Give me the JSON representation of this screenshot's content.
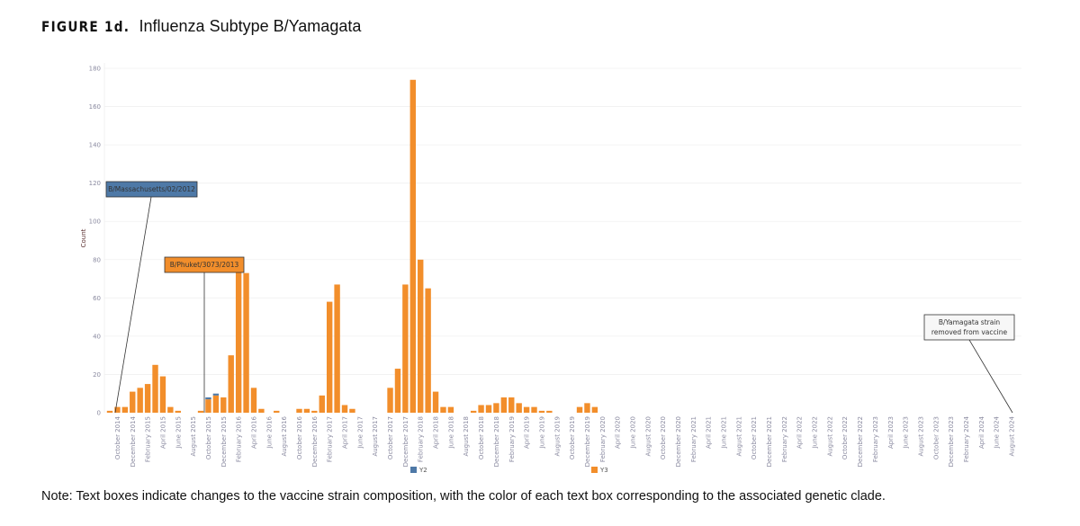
{
  "figure_label": "FIGURE 1d.",
  "figure_title": "Influenza Subtype B/Yamagata",
  "note": "Note: Text boxes indicate changes to the vaccine strain composition, with the color of each text box corresponding to the associated genetic clade.",
  "chart_data": {
    "type": "bar",
    "stacked": true,
    "title": "Influenza Subtype B/Yamagata",
    "xlabel": "",
    "ylabel": "Count",
    "ylim": [
      0,
      180
    ],
    "y_ticks": [
      0,
      20,
      40,
      60,
      80,
      100,
      120,
      140,
      160,
      180
    ],
    "grid": true,
    "legend_position": "bottom",
    "x_tick_labels": [
      "October 2014",
      "December 2014",
      "February 2015",
      "April 2015",
      "June 2015",
      "August 2015",
      "October 2015",
      "December 2015",
      "February 2016",
      "April 2016",
      "June 2016",
      "August 2016",
      "October 2016",
      "December 2016",
      "February 2017",
      "April 2017",
      "June 2017",
      "August 2017",
      "October 2017",
      "December 2017",
      "February 2018",
      "April 2018",
      "June 2018",
      "August 2018",
      "October 2018",
      "December 2018",
      "February 2019",
      "April 2019",
      "June 2019",
      "August 2019",
      "October 2019",
      "December 2019",
      "February 2020",
      "April 2020",
      "June 2020",
      "August 2020",
      "October 2020",
      "December 2020",
      "February 2021",
      "April 2021",
      "June 2021",
      "August 2021",
      "October 2021",
      "December 2021",
      "February 2022",
      "April 2022",
      "June 2022",
      "August 2022",
      "October 2022",
      "December 2022",
      "February 2023",
      "April 2023",
      "June 2023",
      "August 2023",
      "October 2023",
      "December 2023",
      "February 2024",
      "April 2024",
      "June 2024",
      "August 2024"
    ],
    "series": [
      {
        "name": "Y2",
        "color": "#4e79a7",
        "values": [
          0,
          0,
          0,
          0,
          0,
          0,
          0,
          0,
          0,
          0,
          0,
          0,
          0,
          1,
          1,
          0,
          0,
          0,
          0,
          0,
          0,
          0,
          0,
          0,
          0,
          0,
          0,
          0,
          0,
          0,
          0,
          0,
          0,
          0,
          0,
          0,
          0,
          0,
          0,
          0,
          0,
          0,
          0,
          0,
          0,
          0,
          0,
          0,
          0,
          0,
          0,
          0,
          0,
          0,
          0,
          0,
          0,
          0,
          0,
          0,
          0,
          0,
          0,
          0,
          0,
          0,
          0,
          0,
          0,
          0,
          0,
          0,
          0,
          0,
          0,
          0,
          0,
          0,
          0,
          0,
          0,
          0,
          0,
          0,
          0,
          0,
          0,
          0,
          0,
          0,
          0,
          0,
          0,
          0,
          0,
          0,
          0,
          0,
          0,
          0,
          0,
          0,
          0,
          0,
          0,
          0,
          0,
          0,
          0,
          0,
          0,
          0,
          0,
          0,
          0,
          0,
          0,
          0,
          0,
          0
        ]
      },
      {
        "name": "Y3",
        "color": "#f28e2b",
        "values": [
          1,
          3,
          3,
          11,
          13,
          15,
          25,
          19,
          3,
          1,
          0,
          0,
          1,
          7,
          9,
          8,
          30,
          78,
          73,
          13,
          2,
          0,
          1,
          0,
          0,
          2,
          2,
          1,
          9,
          58,
          67,
          4,
          2,
          0,
          0,
          0,
          0,
          13,
          23,
          67,
          174,
          80,
          65,
          11,
          3,
          3,
          0,
          0,
          1,
          4,
          4,
          5,
          8,
          8,
          5,
          3,
          3,
          1,
          1,
          0,
          0,
          0,
          3,
          5,
          3,
          0,
          0,
          0,
          0,
          0,
          0,
          0,
          0,
          0,
          0,
          0,
          0,
          0,
          0,
          0,
          0,
          0,
          0,
          0,
          0,
          0,
          0,
          0,
          0,
          0,
          0,
          0,
          0,
          0,
          0,
          0,
          0,
          0,
          0,
          0,
          0,
          0,
          0,
          0,
          0,
          0,
          0,
          0,
          0,
          0,
          0,
          0,
          0,
          0,
          0,
          0,
          0,
          0,
          0,
          0
        ]
      }
    ],
    "annotations": [
      {
        "text": "B/Massachusetts/02/2012",
        "color": "#4e79a7"
      },
      {
        "text": "B/Phuket/3073/2013",
        "color": "#f28e2b"
      },
      {
        "text_lines": [
          "B/Yamagata strain",
          "removed from vaccine"
        ],
        "color": "#f7f7f7"
      }
    ]
  }
}
